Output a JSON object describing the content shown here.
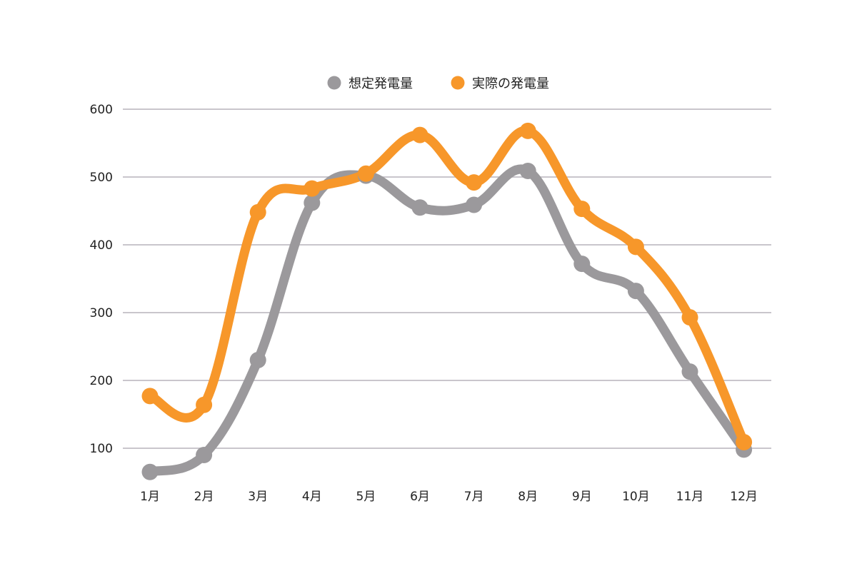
{
  "chart_data": {
    "type": "line",
    "title": "",
    "xlabel": "",
    "ylabel": "",
    "categories": [
      "1月",
      "2月",
      "3月",
      "4月",
      "5月",
      "6月",
      "7月",
      "8月",
      "9月",
      "10月",
      "11月",
      "12月"
    ],
    "ylim": [
      50,
      600
    ],
    "yticks": [
      100,
      200,
      300,
      400,
      500,
      600
    ],
    "grid": true,
    "legend_position": "top-center",
    "smooth": true,
    "series": [
      {
        "name": "想定発電量",
        "color": "#9b999c",
        "values": [
          65,
          90,
          230,
          462,
          502,
          455,
          459,
          509,
          372,
          332,
          213,
          98
        ]
      },
      {
        "name": "実際の発電量",
        "color": "#f7972a",
        "values": [
          177,
          164,
          448,
          483,
          505,
          562,
          492,
          568,
          453,
          397,
          293,
          109
        ]
      }
    ]
  }
}
